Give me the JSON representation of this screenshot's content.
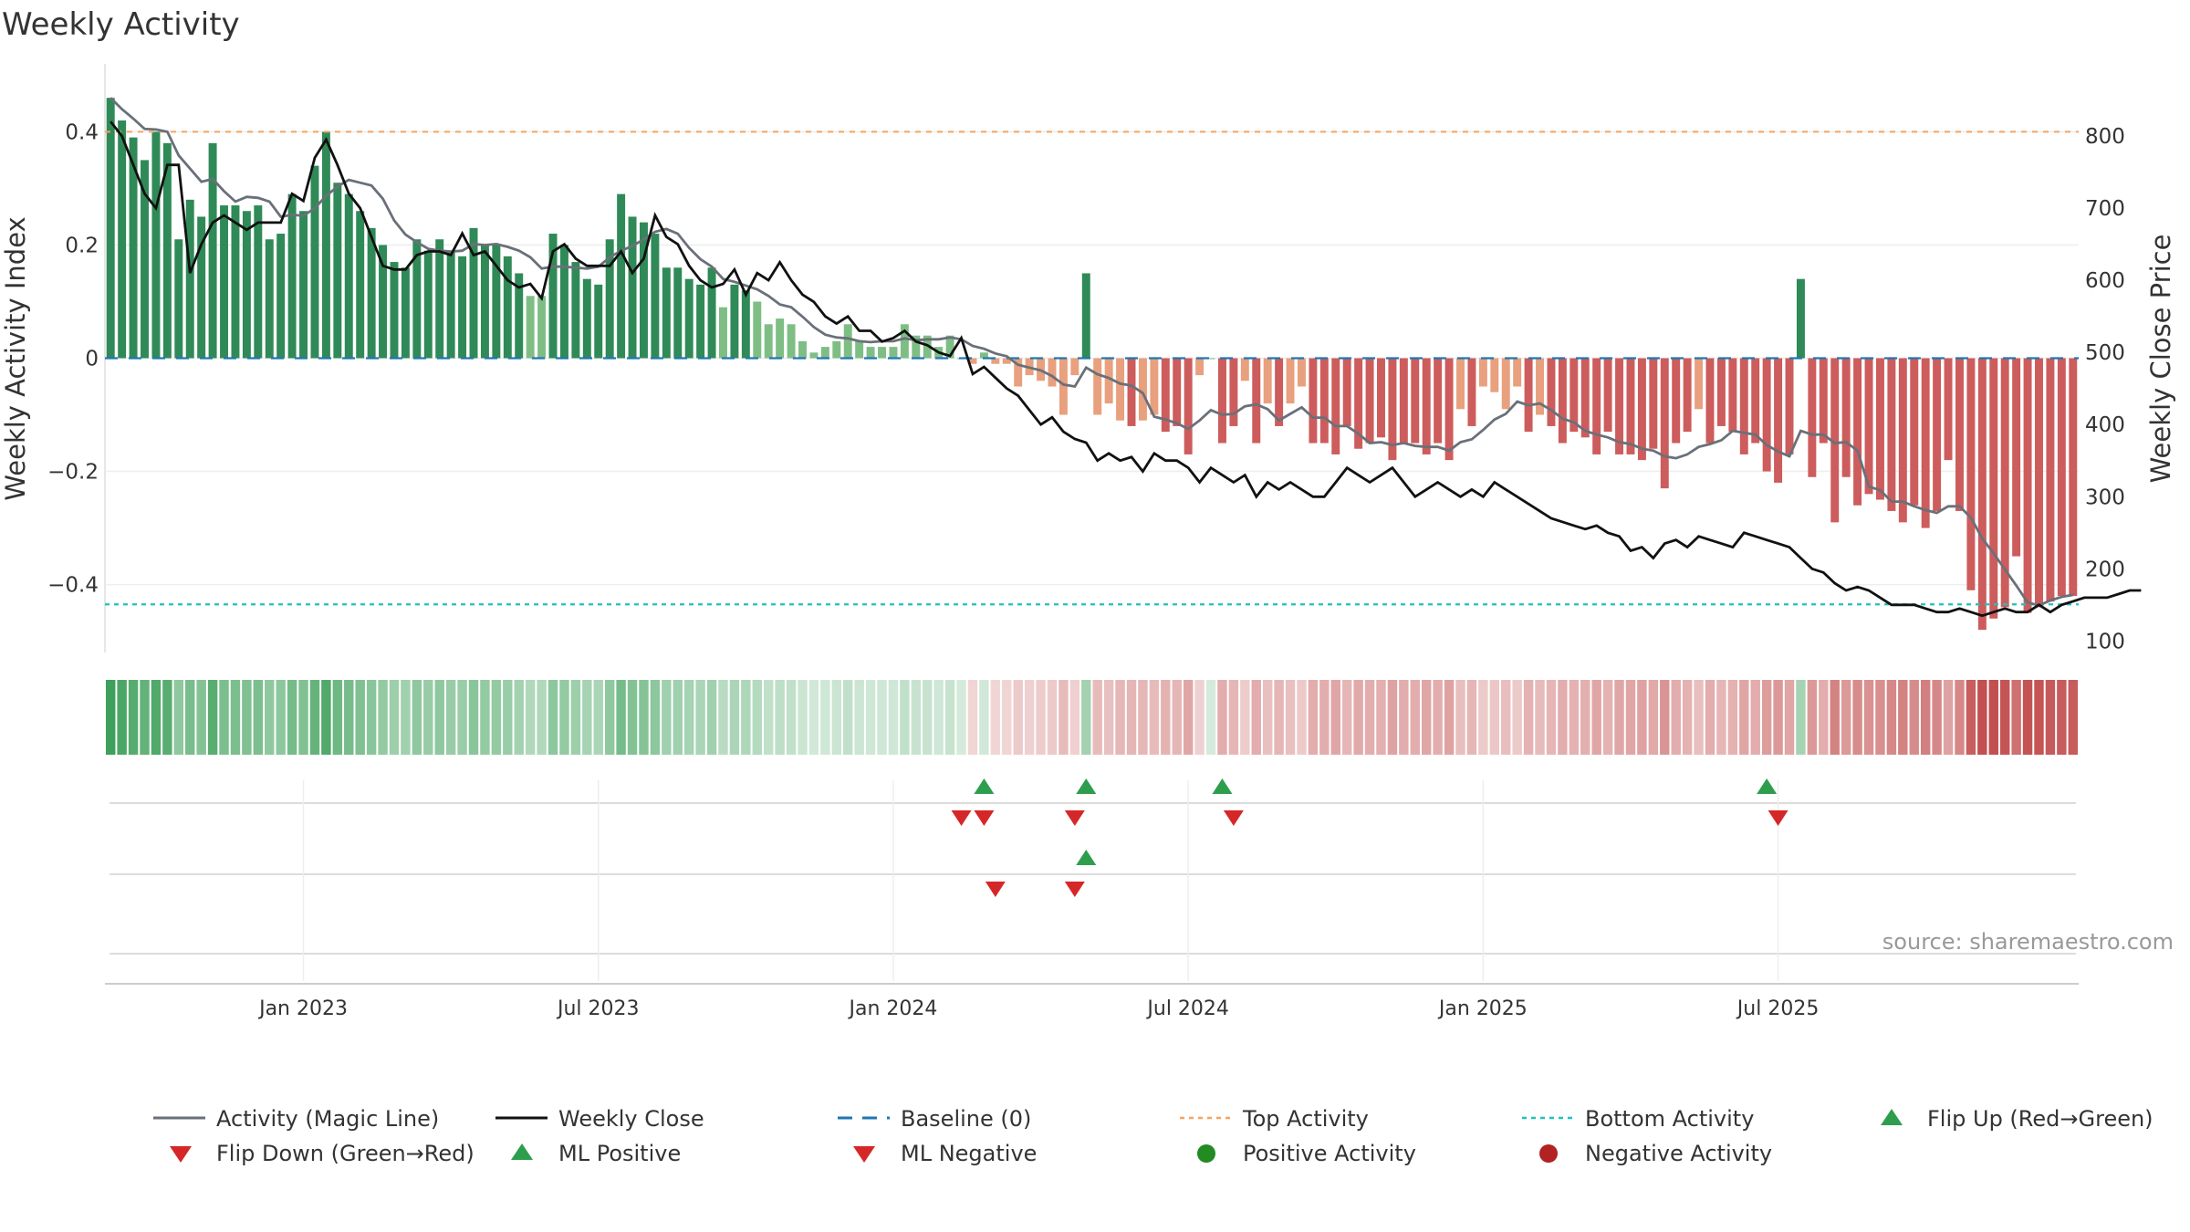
{
  "chart_data": {
    "type": "bar+line",
    "title": "Weekly Activity",
    "ylabel_left": "Weekly Activity Index",
    "ylabel_right": "Weekly Close Price",
    "left_ticks": [
      {
        "value": 0.4,
        "label": "0.4"
      },
      {
        "value": 0.2,
        "label": "0.2"
      },
      {
        "value": 0,
        "label": "0"
      },
      {
        "value": -0.2,
        "label": "−0.2"
      },
      {
        "value": -0.4,
        "label": "−0.4"
      }
    ],
    "left_range": [
      -0.52,
      0.52
    ],
    "right_ticks": [
      {
        "value": 800,
        "label": "800"
      },
      {
        "value": 700,
        "label": "700"
      },
      {
        "value": 600,
        "label": "600"
      },
      {
        "value": 500,
        "label": "500"
      },
      {
        "value": 400,
        "label": "400"
      },
      {
        "value": 300,
        "label": "300"
      },
      {
        "value": 200,
        "label": "200"
      },
      {
        "value": 100,
        "label": "100"
      }
    ],
    "right_range": [
      84,
      900
    ],
    "date_ticks": [
      {
        "week": 17,
        "label": "Jan 2023"
      },
      {
        "week": 43,
        "label": "Jul 2023"
      },
      {
        "week": 69,
        "label": "Jan 2024"
      },
      {
        "week": 95,
        "label": "Jul 2024"
      },
      {
        "week": 121,
        "label": "Jan 2025"
      },
      {
        "week": 147,
        "label": "Jul 2025"
      }
    ],
    "top_activity": 0.4,
    "bottom_activity": -0.435,
    "baseline": 0,
    "activity_index": [
      0.46,
      0.42,
      0.39,
      0.35,
      0.4,
      0.38,
      0.21,
      0.28,
      0.25,
      0.38,
      0.27,
      0.27,
      0.26,
      0.27,
      0.21,
      0.22,
      0.29,
      0.26,
      0.34,
      0.4,
      0.31,
      0.29,
      0.26,
      0.23,
      0.2,
      0.17,
      0.16,
      0.21,
      0.19,
      0.21,
      0.19,
      0.18,
      0.23,
      0.2,
      0.2,
      0.18,
      0.15,
      0.11,
      0.11,
      0.22,
      0.2,
      0.17,
      0.14,
      0.13,
      0.21,
      0.29,
      0.25,
      0.24,
      0.22,
      0.16,
      0.16,
      0.14,
      0.13,
      0.16,
      0.09,
      0.13,
      0.12,
      0.1,
      0.06,
      0.07,
      0.06,
      0.03,
      0.01,
      0.02,
      0.03,
      0.06,
      0.03,
      0.02,
      0.02,
      0.02,
      0.06,
      0.04,
      0.04,
      0.02,
      0.04,
      0.0,
      -0.01,
      0.01,
      -0.01,
      -0.01,
      -0.05,
      -0.03,
      -0.04,
      -0.05,
      -0.1,
      -0.03,
      0.15,
      -0.1,
      -0.08,
      -0.11,
      -0.12,
      -0.11,
      -0.1,
      -0.13,
      -0.12,
      -0.17,
      -0.03,
      0.0,
      -0.15,
      -0.12,
      -0.04,
      -0.15,
      -0.08,
      -0.12,
      -0.08,
      -0.05,
      -0.15,
      -0.15,
      -0.17,
      -0.12,
      -0.16,
      -0.15,
      -0.14,
      -0.18,
      -0.15,
      -0.15,
      -0.17,
      -0.15,
      -0.18,
      -0.09,
      -0.12,
      -0.05,
      -0.06,
      -0.09,
      -0.05,
      -0.13,
      -0.1,
      -0.12,
      -0.15,
      -0.13,
      -0.14,
      -0.17,
      -0.13,
      -0.17,
      -0.17,
      -0.18,
      -0.16,
      -0.23,
      -0.15,
      -0.13,
      -0.09,
      -0.15,
      -0.12,
      -0.13,
      -0.17,
      -0.15,
      -0.2,
      -0.22,
      -0.17,
      0.14,
      -0.21,
      -0.15,
      -0.29,
      -0.21,
      -0.26,
      -0.24,
      -0.25,
      -0.27,
      -0.29,
      -0.26,
      -0.3,
      -0.27,
      -0.18,
      -0.27,
      -0.41,
      -0.48,
      -0.46,
      -0.44,
      -0.35,
      -0.45,
      -0.44,
      -0.43,
      -0.42,
      -0.42
    ],
    "weekly_close": [
      820,
      800,
      760,
      720,
      700,
      760,
      760,
      610,
      650,
      680,
      690,
      680,
      670,
      680,
      680,
      680,
      720,
      710,
      770,
      795,
      760,
      720,
      700,
      660,
      620,
      615,
      615,
      635,
      640,
      640,
      635,
      665,
      635,
      640,
      620,
      600,
      590,
      595,
      575,
      640,
      650,
      630,
      620,
      620,
      620,
      640,
      610,
      630,
      690,
      660,
      650,
      620,
      600,
      590,
      595,
      615,
      580,
      610,
      600,
      625,
      600,
      580,
      570,
      550,
      540,
      550,
      530,
      530,
      515,
      520,
      530,
      515,
      510,
      500,
      495,
      520,
      470,
      480,
      465,
      450,
      440,
      420,
      400,
      410,
      390,
      380,
      375,
      350,
      360,
      350,
      355,
      335,
      360,
      350,
      350,
      340,
      320,
      340,
      330,
      320,
      330,
      300,
      320,
      310,
      320,
      310,
      300,
      300,
      320,
      340,
      330,
      320,
      330,
      340,
      320,
      300,
      310,
      320,
      310,
      300,
      310,
      300,
      320,
      310,
      300,
      290,
      280,
      270,
      265,
      260,
      255,
      260,
      250,
      245,
      225,
      230,
      215,
      235,
      240,
      230,
      245,
      240,
      235,
      230,
      250,
      245,
      240,
      235,
      230,
      215,
      200,
      195,
      180,
      170,
      175,
      170,
      160,
      150,
      150,
      150,
      145,
      140,
      140,
      145,
      140,
      135,
      140,
      145,
      140,
      140,
      150,
      140,
      150,
      155,
      160,
      160,
      160,
      165,
      170,
      170
    ]
  },
  "legend": [
    {
      "label": "Activity (Magic Line)",
      "key": "magic-line",
      "color": "#6a7079"
    },
    {
      "label": "Weekly Close",
      "key": "weekly-close",
      "color": "#111111"
    },
    {
      "label": "Baseline (0)",
      "key": "baseline",
      "color": "#1f77b4"
    },
    {
      "label": "Top Activity",
      "key": "top-activity",
      "color": "#f4a460"
    },
    {
      "label": "Bottom Activity",
      "key": "bottom-activity",
      "color": "#20c0c0"
    },
    {
      "label": "Flip Up (Red→Green)",
      "key": "flip-up",
      "color": "#2e9e4e"
    },
    {
      "label": "Flip Down (Green→Red)",
      "key": "flip-down",
      "color": "#d62728"
    },
    {
      "label": "ML Positive",
      "key": "ml-positive",
      "color": "#2e9e4e"
    },
    {
      "label": "ML Negative",
      "key": "ml-negative",
      "color": "#d62728"
    },
    {
      "label": "Positive Activity",
      "key": "positive-activity",
      "color": "#228b22"
    },
    {
      "label": "Negative Activity",
      "key": "negative-activity",
      "color": "#b22222"
    }
  ],
  "signals": {
    "flip_up_weeks": [
      77,
      86,
      98,
      146
    ],
    "flip_down_weeks": [
      75,
      77,
      85,
      99,
      147
    ],
    "ml_positive_weeks": [
      86
    ],
    "ml_negative_weeks": [
      78,
      85
    ]
  },
  "source": "source: sharemaestro.com",
  "colors": {
    "pos_dark": "#2f8a57",
    "pos_light": "#7ebe85",
    "neg_dark": "#cd5c5c",
    "neg_light": "#e8a07e"
  }
}
